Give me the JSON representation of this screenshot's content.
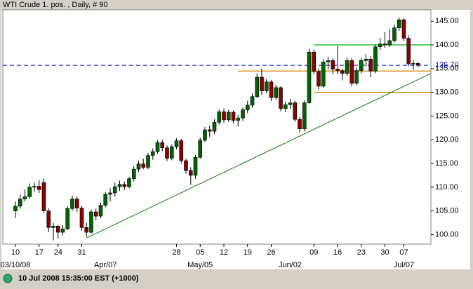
{
  "chart_data": {
    "type": "candlestick",
    "title": "WTI Crude 1. pos. , Daily, # 90",
    "status": "10 Jul 2008 15:35:00  EST (+1000)",
    "categories": [
      "10",
      null,
      null,
      null,
      null,
      "17",
      null,
      null,
      null,
      "24",
      null,
      null,
      null,
      null,
      "31",
      null,
      null,
      null,
      null,
      null,
      null,
      null,
      null,
      null,
      null,
      null,
      null,
      null,
      null,
      null,
      null,
      null,
      null,
      null,
      "28",
      null,
      null,
      null,
      null,
      "05",
      null,
      null,
      null,
      null,
      "12",
      null,
      null,
      null,
      null,
      "19",
      null,
      null,
      null,
      null,
      "26",
      null,
      null,
      null,
      null,
      null,
      null,
      null,
      null,
      "09",
      null,
      null,
      null,
      null,
      "16",
      null,
      null,
      null,
      null,
      "23",
      null,
      null,
      null,
      null,
      "30",
      null,
      null,
      null,
      "07",
      null,
      null,
      null
    ],
    "period_labels": [
      "03/10/08",
      null,
      null,
      null,
      null,
      null,
      null,
      null,
      null,
      null,
      null,
      null,
      null,
      null,
      null,
      null,
      null,
      null,
      null,
      "Apr/07",
      null,
      null,
      null,
      null,
      null,
      null,
      null,
      null,
      null,
      null,
      null,
      null,
      null,
      null,
      null,
      null,
      null,
      null,
      null,
      "May/05",
      null,
      null,
      null,
      null,
      null,
      null,
      null,
      null,
      null,
      null,
      null,
      null,
      null,
      null,
      null,
      null,
      null,
      null,
      "Jun/02",
      null,
      null,
      null,
      null,
      null,
      null,
      null,
      null,
      null,
      null,
      null,
      null,
      null,
      null,
      null,
      null,
      null,
      null,
      null,
      null,
      null,
      null,
      null,
      "Jul/07",
      null,
      null,
      null
    ],
    "open": [
      105,
      106,
      107.5,
      108,
      110,
      110.2,
      111,
      105,
      101.5,
      101.8,
      100.5,
      101.2,
      105.5,
      107.5,
      105.6,
      101.5,
      100.5,
      104.8,
      103.9,
      106.2,
      108.5,
      108.8,
      110.1,
      110.6,
      110.1,
      111.8,
      113.8,
      114.9,
      114.2,
      116.7,
      117.5,
      119.4,
      118.3,
      116.1,
      118.5,
      119.8,
      115.6,
      113.5,
      112.5,
      116.3,
      119.9,
      122.1,
      121.8,
      123.7,
      125.9,
      124.2,
      125.8,
      124.1,
      124.6,
      126.3,
      127.3,
      129.1,
      133.2,
      130.3,
      132.2,
      128.9,
      131,
      126.6,
      127.4,
      127.8,
      124.3,
      122.3,
      127.8,
      138.5,
      134.4,
      131.3,
      136.4,
      136.7,
      134.9,
      134.6,
      134,
      136.7,
      131.9,
      134.6,
      136.7,
      137,
      134.5,
      139.6,
      140.2,
      140,
      140.9,
      143.6,
      145.3,
      141.4,
      136,
      136.1
    ],
    "high": [
      107,
      108.5,
      109.5,
      110.8,
      111,
      111.5,
      111.8,
      105.5,
      102.5,
      102,
      102,
      106,
      108.2,
      108,
      106,
      102.5,
      105.3,
      105.5,
      106.8,
      109,
      109.8,
      111,
      111.4,
      111.2,
      112.2,
      114.5,
      115.6,
      116,
      117.2,
      118.2,
      119.9,
      120,
      118.8,
      119,
      120.3,
      120.2,
      116,
      114.2,
      116.8,
      120.5,
      122.7,
      123,
      124.3,
      126.4,
      126.6,
      126.3,
      126.2,
      125.2,
      126.8,
      128.2,
      129.8,
      134,
      135,
      132.8,
      132.6,
      131.6,
      131.3,
      128,
      128.6,
      128.2,
      124.8,
      128.3,
      139.2,
      139,
      135,
      137,
      137.5,
      137.2,
      139.8,
      135,
      137.3,
      137.2,
      135.2,
      137.3,
      138,
      137.6,
      140.1,
      141.5,
      142.7,
      143.3,
      144.3,
      145.8,
      145.6,
      142,
      136.8,
      136.4
    ],
    "low": [
      103.5,
      105.5,
      107,
      107.5,
      109,
      108.8,
      104.5,
      100.5,
      98.8,
      99.2,
      99.8,
      101,
      105,
      104.8,
      100.8,
      99.5,
      100.2,
      103,
      103.5,
      105.8,
      107,
      108,
      109.2,
      109.4,
      109.8,
      111.2,
      113.2,
      113.8,
      113.8,
      115.8,
      117,
      117.6,
      115.5,
      115.7,
      118,
      115,
      112.8,
      110.5,
      111.8,
      116,
      119.5,
      120.6,
      121.2,
      123.2,
      123.6,
      123.8,
      123.5,
      122.8,
      124,
      125.6,
      126.8,
      128.8,
      129.5,
      129.8,
      128.2,
      128.4,
      126,
      125.8,
      126.5,
      123.8,
      121.6,
      121.8,
      127.5,
      133.8,
      130.6,
      131,
      134.8,
      133.8,
      133.8,
      132.5,
      133.5,
      131.2,
      131.5,
      134,
      135.5,
      133.2,
      134,
      139,
      139.4,
      139.6,
      140.5,
      143,
      140.8,
      135.5,
      134.8,
      135.2
    ],
    "close": [
      106,
      107.5,
      108,
      110,
      110.2,
      109.5,
      105,
      101.5,
      101.8,
      100.5,
      101.2,
      105.5,
      107.5,
      105.6,
      101.5,
      100.5,
      104.8,
      103.9,
      106.2,
      108.5,
      108.8,
      110.1,
      110.6,
      110.1,
      111.8,
      113.8,
      114.9,
      114.2,
      116.7,
      117.5,
      119.4,
      118.3,
      116.1,
      118.5,
      119.8,
      115.6,
      113.5,
      112.5,
      116.3,
      119.9,
      122.1,
      121.8,
      123.7,
      125.9,
      124.2,
      125.8,
      124.1,
      124.6,
      126.3,
      127.3,
      129.1,
      133.2,
      130.3,
      132.2,
      128.9,
      131,
      126.6,
      127.4,
      127.8,
      124.3,
      122.3,
      127.8,
      138.5,
      134.4,
      131.3,
      136.4,
      136.7,
      134.9,
      134.6,
      134,
      136.7,
      131.9,
      134.6,
      136.7,
      137,
      134.5,
      139.6,
      140.2,
      140,
      140.9,
      143.6,
      145.3,
      141.4,
      136,
      136.1,
      135.7
    ],
    "up_color": "#006400",
    "down_color": "#8b0000",
    "ylim": [
      98,
      147.4
    ],
    "yticks": [
      {
        "value": 100,
        "label": "100.00"
      },
      {
        "value": 105,
        "label": "105.00"
      },
      {
        "value": 110,
        "label": "110.00"
      },
      {
        "value": 115,
        "label": "115.00"
      },
      {
        "value": 120,
        "label": "120.00"
      },
      {
        "value": 125,
        "label": "125.00"
      },
      {
        "value": 130,
        "label": "130.00"
      },
      {
        "value": 135,
        "label": "135.00"
      },
      {
        "value": 140,
        "label": "140.00"
      },
      {
        "value": 145,
        "label": "145.00"
      }
    ],
    "last_price": {
      "value": 135.7,
      "label": "135.70",
      "color": "#0000cc"
    },
    "levels": [
      {
        "value": 134.5,
        "from": 47,
        "color": "#d08000"
      },
      {
        "value": 130,
        "from": 63,
        "color": "#d08000"
      },
      {
        "value": 140,
        "from": 63,
        "color": "#00b000"
      }
    ],
    "trendline": {
      "x": [
        15,
        85
      ],
      "y": [
        99.3,
        132.7
      ],
      "color": "#008000"
    }
  }
}
